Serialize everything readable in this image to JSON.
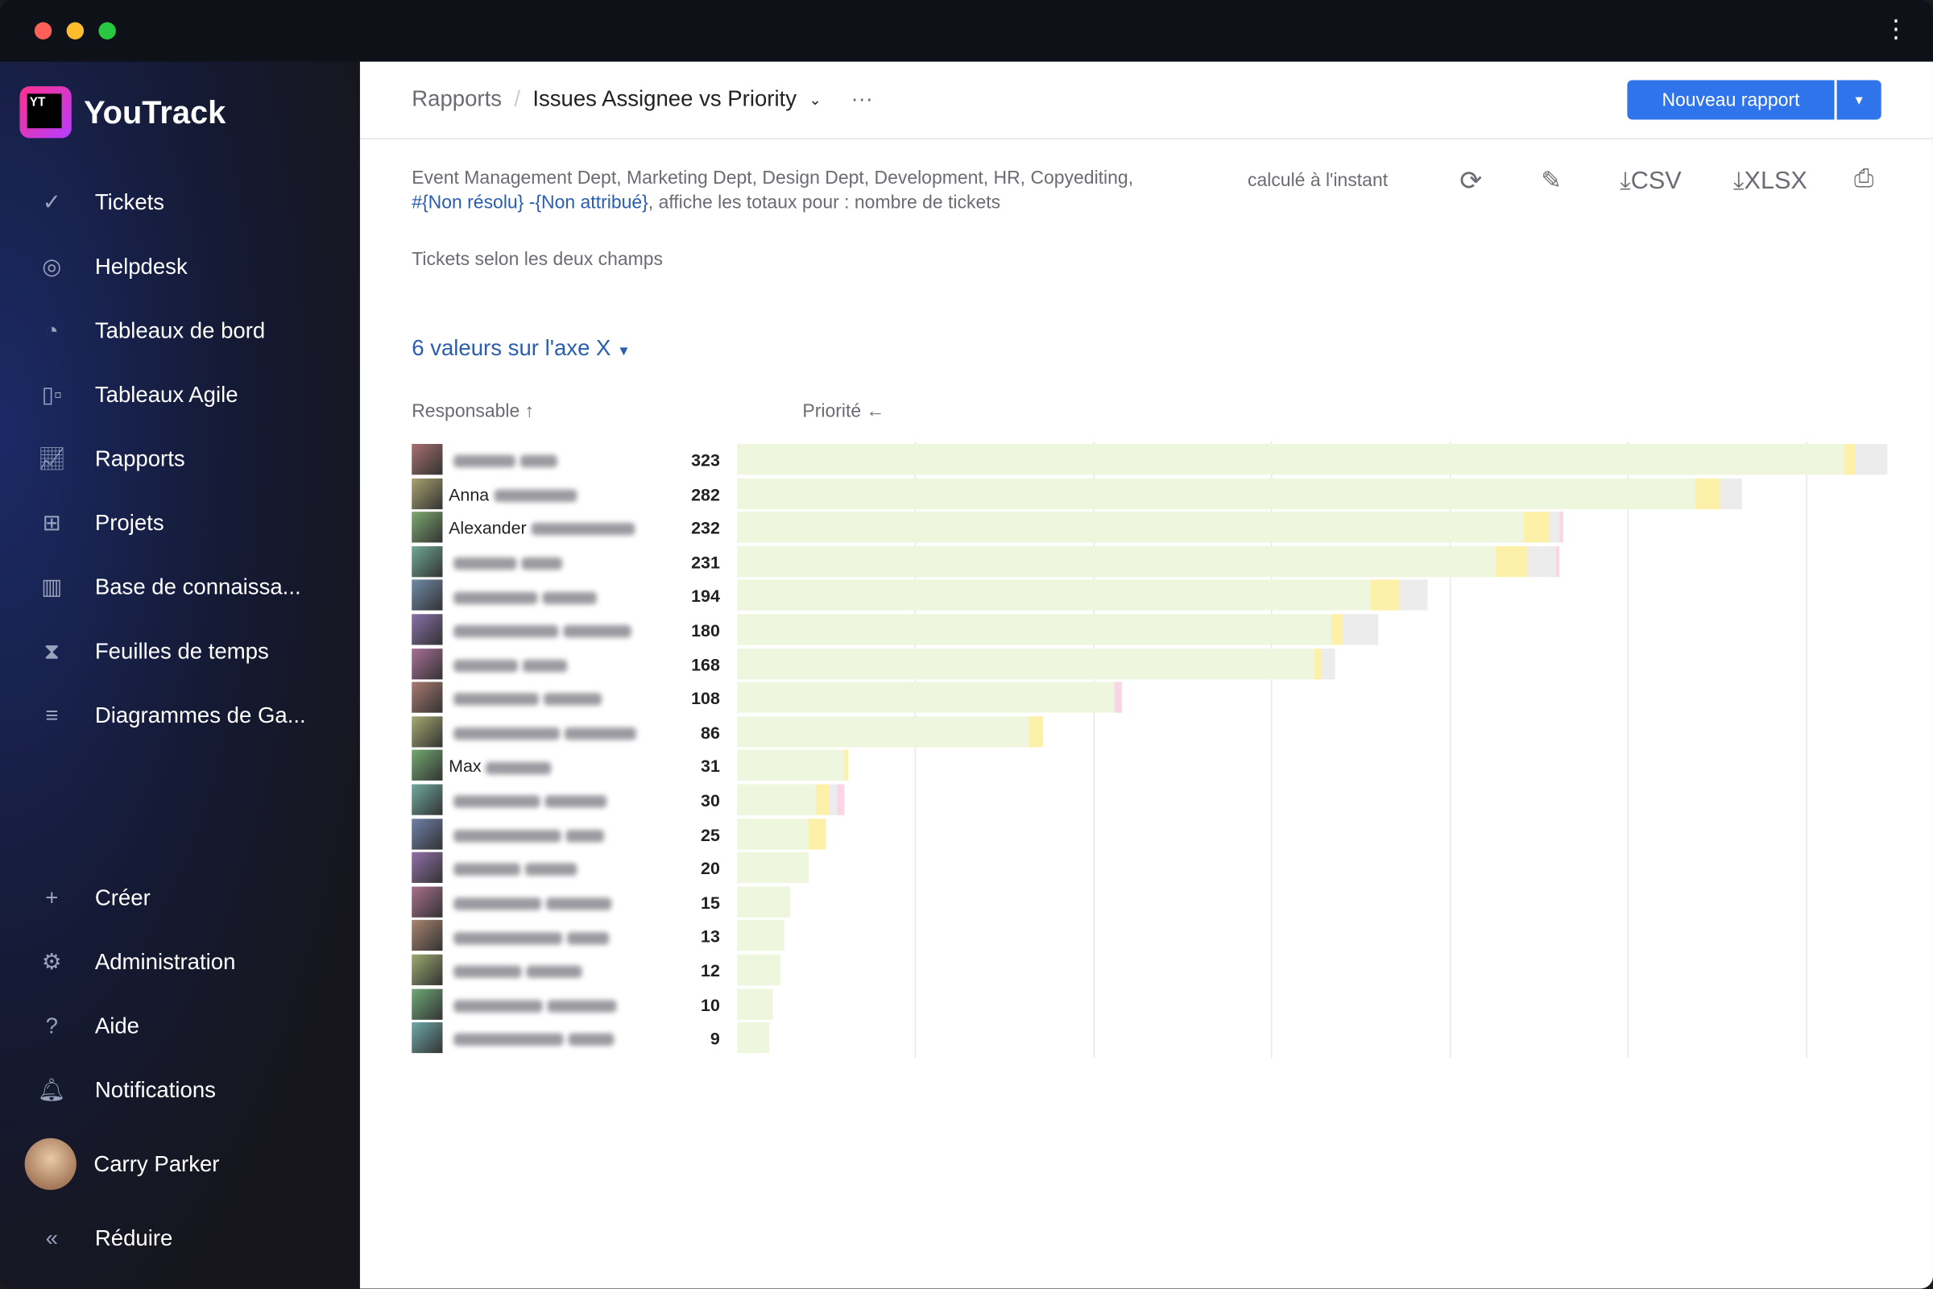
{
  "app": {
    "name": "YouTrack"
  },
  "sidebar": {
    "items": [
      {
        "label": "Tickets",
        "icon": "check-circle-icon"
      },
      {
        "label": "Helpdesk",
        "icon": "lifebuoy-icon"
      },
      {
        "label": "Tableaux de bord",
        "icon": "dashboard-icon"
      },
      {
        "label": "Tableaux Agile",
        "icon": "agile-board-icon"
      },
      {
        "label": "Rapports",
        "icon": "chart-icon"
      },
      {
        "label": "Projets",
        "icon": "grid-icon"
      },
      {
        "label": "Base de connaissa...",
        "icon": "book-icon"
      },
      {
        "label": "Feuilles de temps",
        "icon": "hourglass-icon"
      },
      {
        "label": "Diagrammes de Ga...",
        "icon": "gantt-icon"
      }
    ],
    "bottom": [
      {
        "label": "Créer",
        "icon": "plus-icon"
      },
      {
        "label": "Administration",
        "icon": "gear-icon"
      },
      {
        "label": "Aide",
        "icon": "help-icon"
      },
      {
        "label": "Notifications",
        "icon": "bell-icon"
      }
    ],
    "user": "Carry Parker",
    "collapse": "Réduire"
  },
  "header": {
    "breadcrumb_root": "Rapports",
    "title": "Issues Assignee vs Priority",
    "more": "···",
    "new_report": "Nouveau rapport"
  },
  "report": {
    "desc_a": "Event Management Dept, Marketing Dept, Design Dept, Development, HR, Copyediting, ",
    "query": "#{Non résolu} -{Non attribué}",
    "desc_b": ", affiche les totaux pour : nombre de tickets",
    "subtitle": "Tickets selon les deux champs",
    "computed": "calculé à l'instant",
    "csv": "CSV",
    "xlsx": "XLSX",
    "axis_selector": "6 valeurs sur l'axe X",
    "col_assignee": "Responsable ↑",
    "col_priority": "Priorité ←"
  },
  "colors": {
    "accent": "#2f74ea",
    "segments": [
      "#eef6de",
      "#fdf0a8",
      "#ececec",
      "#f9d5e5"
    ]
  },
  "chart_data": {
    "type": "bar",
    "orientation": "horizontal",
    "stacked": true,
    "rows": [
      {
        "name": "",
        "total": 323,
        "segments": [
          311,
          3,
          9,
          0
        ]
      },
      {
        "name": "Anna",
        "total": 282,
        "segments": [
          269,
          7,
          6,
          0
        ]
      },
      {
        "name": "Alexander",
        "total": 232,
        "segments": [
          221,
          7,
          3,
          1
        ]
      },
      {
        "name": "",
        "total": 231,
        "segments": [
          213,
          9,
          8,
          1
        ]
      },
      {
        "name": "",
        "total": 194,
        "segments": [
          178,
          8,
          8,
          0
        ]
      },
      {
        "name": "",
        "total": 180,
        "segments": [
          167,
          3,
          10,
          0
        ]
      },
      {
        "name": "",
        "total": 168,
        "segments": [
          162,
          2,
          4,
          0
        ]
      },
      {
        "name": "",
        "total": 108,
        "segments": [
          106,
          0,
          0,
          2
        ]
      },
      {
        "name": "",
        "total": 86,
        "segments": [
          82,
          4,
          0,
          0
        ]
      },
      {
        "name": "Max",
        "total": 31,
        "segments": [
          30,
          1,
          0,
          0
        ]
      },
      {
        "name": "",
        "total": 30,
        "segments": [
          22,
          4,
          2,
          2
        ]
      },
      {
        "name": "",
        "total": 25,
        "segments": [
          20,
          5,
          0,
          0
        ]
      },
      {
        "name": "",
        "total": 20,
        "segments": [
          20,
          0,
          0,
          0
        ]
      },
      {
        "name": "",
        "total": 15,
        "segments": [
          15,
          0,
          0,
          0
        ]
      },
      {
        "name": "",
        "total": 13,
        "segments": [
          13,
          0,
          0,
          0
        ]
      },
      {
        "name": "",
        "total": 12,
        "segments": [
          12,
          0,
          0,
          0
        ]
      },
      {
        "name": "",
        "total": 10,
        "segments": [
          10,
          0,
          0,
          0
        ]
      },
      {
        "name": "",
        "total": 9,
        "segments": [
          9,
          0,
          0,
          0
        ]
      }
    ],
    "grid_step": 50
  }
}
